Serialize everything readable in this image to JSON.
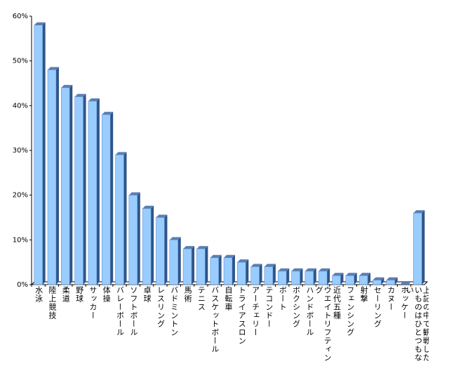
{
  "chart_data": {
    "type": "bar",
    "categories": [
      "水泳",
      "陸上競技",
      "柔道",
      "野球",
      "サッカー",
      "体操",
      "バレーボール",
      "ソフトボール",
      "卓球",
      "レスリング",
      "バドミントン",
      "馬術",
      "テニス",
      "バスケットボール",
      "自転車",
      "トライアスロン",
      "アーチェリー",
      "テコンドー",
      "ボート",
      "ボクシング",
      "ハンドボール",
      "ウエイトリフティング",
      "近代五種",
      "フェンシング",
      "射撃",
      "セーリング",
      "カヌー",
      "ホッケー",
      "上記の中で観戦したいものはひとつもない"
    ],
    "values": [
      58,
      48,
      44,
      42,
      41,
      38,
      29,
      20,
      17,
      15,
      10,
      8,
      8,
      6,
      6,
      5,
      4,
      4,
      3,
      3,
      3,
      3,
      2,
      2,
      2,
      1,
      1,
      0,
      16
    ],
    "color": "#99ccff",
    "ylim": [
      0,
      60
    ],
    "yticks": [
      {
        "value": 0,
        "label": "0%"
      },
      {
        "value": 10,
        "label": "10%"
      },
      {
        "value": 20,
        "label": "20%"
      },
      {
        "value": 30,
        "label": "30%"
      },
      {
        "value": 40,
        "label": "40%"
      },
      {
        "value": 50,
        "label": "50%"
      },
      {
        "value": 60,
        "label": "60%"
      }
    ],
    "grid": false
  }
}
